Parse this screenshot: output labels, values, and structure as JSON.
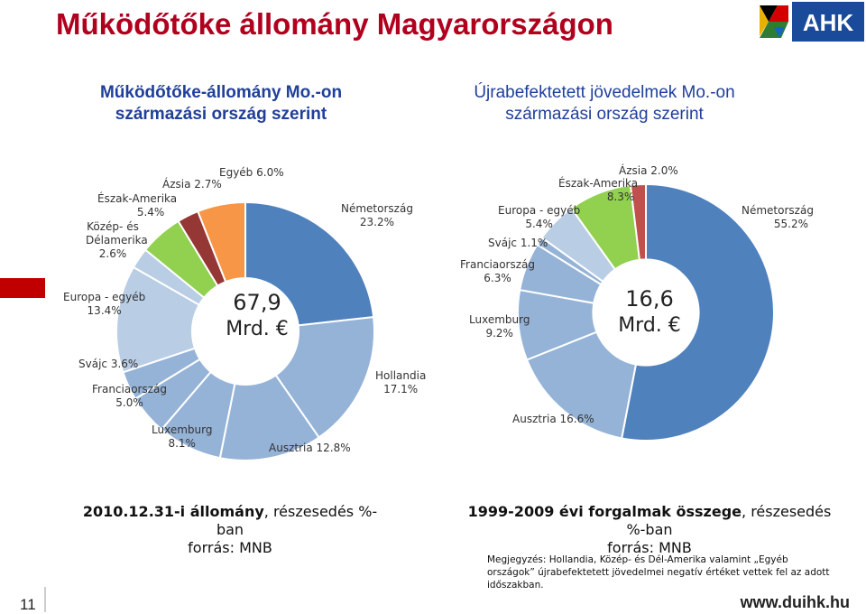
{
  "slide": {
    "title": "Működőtőke állomány Magyarországon",
    "subtitle_left": "Működőtőke-állomány Mo.-on származási ország szerint",
    "subtitle_right": "Újrabefektetett jövedelmek Mo.-on származási ország szerint",
    "logo_text": "AHK",
    "page_number": "11",
    "url": "www.duihk.hu",
    "caption_left_bold": "2010.12.31-i állomány",
    "caption_left_rest": ", részesedés %-ban",
    "caption_left_source": "forrás: MNB",
    "caption_right_bold": "1999-2009 évi forgalmak összege",
    "caption_right_rest": ", részesedés %-ban",
    "caption_right_source": "forrás: MNB",
    "note": "Megjegyzés: Hollandia, Közép- és Dél-Amerika valamint „Egyéb országok” újrabefektetett jövedelmei negatív értéket vettek fel az adott időszakban."
  },
  "colors": {
    "title": "#b0001e",
    "dark_blue": "#4f81bd",
    "mid_blue": "#95b3d7",
    "light_blue": "#b9cde5",
    "green": "#92d050",
    "dark_red": "#953735",
    "orange": "#f79646",
    "red_accent": "#c0504d"
  },
  "chart_data": [
    {
      "type": "pie",
      "total_label": [
        "67,9",
        "Mrd. €"
      ],
      "series": [
        {
          "name": "Németország",
          "value": 23.2,
          "label": "Németország",
          "pct": "23.2%",
          "color": "#4f81bd"
        },
        {
          "name": "Hollandia",
          "value": 17.1,
          "label": "Hollandia",
          "pct": "17.1%",
          "color": "#95b3d7"
        },
        {
          "name": "Ausztria",
          "value": 12.8,
          "label": "Ausztria 12.8%",
          "pct": "",
          "color": "#95b3d7"
        },
        {
          "name": "Luxemburg",
          "value": 8.1,
          "label": "Luxemburg",
          "pct": "8.1%",
          "color": "#95b3d7"
        },
        {
          "name": "Franciaország",
          "value": 5.0,
          "label": "Franciaország",
          "pct": "5.0%",
          "color": "#95b3d7"
        },
        {
          "name": "Svájc",
          "value": 3.6,
          "label": "Svájc 3.6%",
          "pct": "",
          "color": "#95b3d7"
        },
        {
          "name": "Europa - egyéb",
          "value": 13.4,
          "label": "Europa - egyéb",
          "pct": "13.4%",
          "color": "#b9cde5"
        },
        {
          "name": "Közép- és Délamerika",
          "value": 2.6,
          "label": "Közép- és Délamerika",
          "pct": "2.6%",
          "color": "#b9cde5"
        },
        {
          "name": "Észak-Amerika",
          "value": 5.4,
          "label": "Észak-Amerika",
          "pct": "5.4%",
          "color": "#92d050"
        },
        {
          "name": "Ázsia",
          "value": 2.7,
          "label": "Ázsia 2.7%",
          "pct": "",
          "color": "#953735"
        },
        {
          "name": "Egyéb",
          "value": 6.0,
          "label": "Egyéb 6.0%",
          "pct": "",
          "color": "#f79646"
        }
      ]
    },
    {
      "type": "pie",
      "total_label": [
        "16,6",
        "Mrd. €"
      ],
      "series": [
        {
          "name": "Németország",
          "value": 55.2,
          "label": "Németország",
          "pct": "55.2%",
          "color": "#4f81bd"
        },
        {
          "name": "Ausztria",
          "value": 16.6,
          "label": "Ausztria 16.6%",
          "pct": "",
          "color": "#95b3d7"
        },
        {
          "name": "Luxemburg",
          "value": 9.2,
          "label": "Luxemburg",
          "pct": "9.2%",
          "color": "#95b3d7"
        },
        {
          "name": "Franciaország",
          "value": 6.3,
          "label": "Franciaország",
          "pct": "6.3%",
          "color": "#95b3d7"
        },
        {
          "name": "Svájc",
          "value": 1.1,
          "label": "Svájc 1.1%",
          "pct": "",
          "color": "#95b3d7"
        },
        {
          "name": "Europa - egyéb",
          "value": 5.4,
          "label": "Europa - egyéb",
          "pct": "5.4%",
          "color": "#b9cde5"
        },
        {
          "name": "Észak-Amerika",
          "value": 8.3,
          "label": "Észak-Amerika",
          "pct": "8.3%",
          "color": "#92d050"
        },
        {
          "name": "Ázsia",
          "value": 2.0,
          "label": "Ázsia 2.0%",
          "pct": "",
          "color": "#c0504d"
        }
      ]
    }
  ]
}
